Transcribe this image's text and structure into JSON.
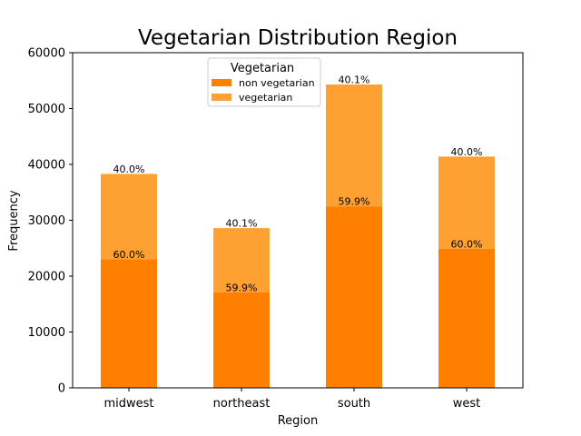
{
  "chart_data": {
    "type": "bar",
    "stacked": true,
    "title": "Vegetarian Distribution Region",
    "xlabel": "Region",
    "ylabel": "Frequency",
    "ylim": [
      0,
      60000
    ],
    "yticks": [
      "0",
      "10000",
      "20000",
      "30000",
      "40000",
      "50000",
      "60000"
    ],
    "categories": [
      "midwest",
      "northeast",
      "south",
      "west"
    ],
    "legend": {
      "title": "Vegetarian",
      "placement": "top-center"
    },
    "series": [
      {
        "name": "non vegetarian",
        "color": "#ff8000",
        "values": [
          23000,
          17100,
          32500,
          24900
        ],
        "labels": [
          "60.0%",
          "59.9%",
          "59.9%",
          "60.0%"
        ]
      },
      {
        "name": "vegetarian",
        "color": "#ffa033",
        "values": [
          15300,
          11500,
          21800,
          16500
        ],
        "labels": [
          "40.0%",
          "40.1%",
          "40.1%",
          "40.0%"
        ]
      }
    ]
  }
}
